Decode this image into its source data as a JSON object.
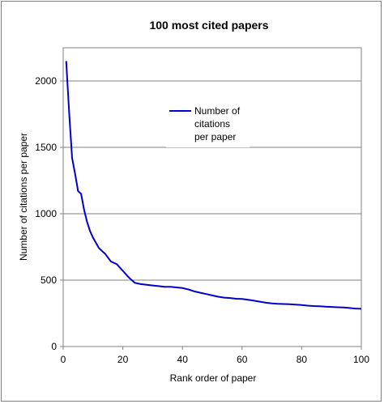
{
  "chart_data": {
    "type": "line",
    "title": "100 most cited papers",
    "xlabel": "Rank order of paper",
    "ylabel": "Number of citations per paper",
    "xlim": [
      0,
      100
    ],
    "ylim": [
      0,
      2250
    ],
    "x_ticks": [
      0,
      20,
      40,
      60,
      80,
      100
    ],
    "y_ticks": [
      0,
      500,
      1000,
      1500,
      2000
    ],
    "grid": "horizontal",
    "legend_position": "upper-center",
    "series": [
      {
        "name": "Number of citations per paper",
        "color": "#0000CC",
        "x": [
          1,
          2,
          3,
          4,
          5,
          6,
          7,
          8,
          9,
          10,
          12,
          14,
          16,
          18,
          20,
          22,
          24,
          26,
          28,
          30,
          32,
          34,
          36,
          38,
          40,
          42,
          44,
          46,
          48,
          50,
          52,
          54,
          56,
          58,
          60,
          62,
          64,
          66,
          68,
          70,
          72,
          74,
          76,
          78,
          80,
          82,
          84,
          86,
          88,
          90,
          92,
          94,
          96,
          98,
          100
        ],
        "y": [
          2150,
          1760,
          1420,
          1300,
          1170,
          1150,
          1030,
          940,
          870,
          820,
          740,
          700,
          640,
          620,
          570,
          520,
          480,
          470,
          465,
          460,
          455,
          450,
          450,
          445,
          440,
          430,
          415,
          405,
          395,
          385,
          375,
          368,
          365,
          360,
          358,
          352,
          345,
          338,
          330,
          325,
          322,
          320,
          318,
          315,
          312,
          308,
          305,
          303,
          300,
          298,
          296,
          294,
          290,
          286,
          284
        ]
      }
    ]
  }
}
